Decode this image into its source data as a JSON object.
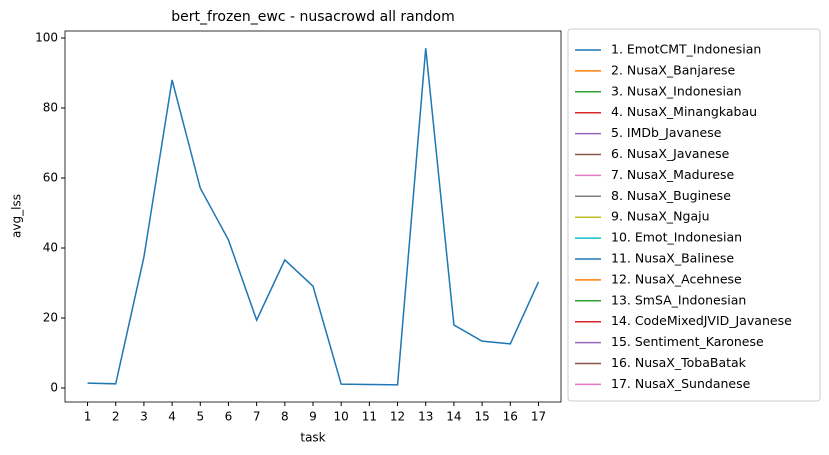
{
  "chart_data": {
    "type": "line",
    "title": "bert_frozen_ewc - nusacrowd all random",
    "xlabel": "task",
    "ylabel": "avg_lss",
    "x": [
      1,
      2,
      3,
      4,
      5,
      6,
      7,
      8,
      9,
      10,
      11,
      12,
      13,
      14,
      15,
      16,
      17
    ],
    "xlim": [
      0.2,
      17.8
    ],
    "xticks": [
      1,
      2,
      3,
      4,
      5,
      6,
      7,
      8,
      9,
      10,
      11,
      12,
      13,
      14,
      15,
      16,
      17
    ],
    "ylim": [
      -4,
      102
    ],
    "yticks": [
      0,
      20,
      40,
      60,
      80,
      100
    ],
    "legend": "outside-right",
    "series": [
      {
        "name": "1. EmotCMT_Indonesian",
        "color": "#1f77b4",
        "values": [
          1.4,
          1.2,
          37.4,
          88,
          57.1,
          42.3,
          19.4,
          36.6,
          29.1,
          1.1,
          1.0,
          0.9,
          97.1,
          18,
          13.4,
          12.6,
          30.3
        ]
      },
      {
        "name": "2. NusaX_Banjarese",
        "color": "#ff7f0e",
        "values": [
          null,
          null,
          null,
          null,
          null,
          null,
          null,
          null,
          null,
          null,
          null,
          null,
          null,
          null,
          null,
          null,
          null
        ]
      },
      {
        "name": "3. NusaX_Indonesian",
        "color": "#2ca02c",
        "values": [
          null,
          null,
          null,
          null,
          null,
          null,
          null,
          null,
          null,
          null,
          null,
          null,
          null,
          null,
          null,
          null,
          null
        ]
      },
      {
        "name": "4. NusaX_Minangkabau",
        "color": "#d62728",
        "values": [
          null,
          null,
          null,
          null,
          null,
          null,
          null,
          null,
          null,
          null,
          null,
          null,
          null,
          null,
          null,
          null,
          null
        ]
      },
      {
        "name": "5. IMDb_Javanese",
        "color": "#9467bd",
        "values": [
          null,
          null,
          null,
          null,
          null,
          null,
          null,
          null,
          null,
          null,
          null,
          null,
          null,
          null,
          null,
          null,
          null
        ]
      },
      {
        "name": "6. NusaX_Javanese",
        "color": "#8c564b",
        "values": [
          null,
          null,
          null,
          null,
          null,
          null,
          null,
          null,
          null,
          null,
          null,
          null,
          null,
          null,
          null,
          null,
          null
        ]
      },
      {
        "name": "7. NusaX_Madurese",
        "color": "#e377c2",
        "values": [
          null,
          null,
          null,
          null,
          null,
          null,
          null,
          null,
          null,
          null,
          null,
          null,
          null,
          null,
          null,
          null,
          null
        ]
      },
      {
        "name": "8. NusaX_Buginese",
        "color": "#7f7f7f",
        "values": [
          null,
          null,
          null,
          null,
          null,
          null,
          null,
          null,
          null,
          null,
          null,
          null,
          null,
          null,
          null,
          null,
          null
        ]
      },
      {
        "name": "9. NusaX_Ngaju",
        "color": "#bcbd22",
        "values": [
          null,
          null,
          null,
          null,
          null,
          null,
          null,
          null,
          null,
          null,
          null,
          null,
          null,
          null,
          null,
          null,
          null
        ]
      },
      {
        "name": "10. Emot_Indonesian",
        "color": "#17becf",
        "values": [
          null,
          null,
          null,
          null,
          null,
          null,
          null,
          null,
          null,
          null,
          null,
          null,
          null,
          null,
          null,
          null,
          null
        ]
      },
      {
        "name": "11. NusaX_Balinese",
        "color": "#1f77b4",
        "values": [
          null,
          null,
          null,
          null,
          null,
          null,
          null,
          null,
          null,
          null,
          null,
          null,
          null,
          null,
          null,
          null,
          null
        ]
      },
      {
        "name": "12. NusaX_Acehnese",
        "color": "#ff7f0e",
        "values": [
          null,
          null,
          null,
          null,
          null,
          null,
          null,
          null,
          null,
          null,
          null,
          null,
          null,
          null,
          null,
          null,
          null
        ]
      },
      {
        "name": "13. SmSA_Indonesian",
        "color": "#2ca02c",
        "values": [
          null,
          null,
          null,
          null,
          null,
          null,
          null,
          null,
          null,
          null,
          null,
          null,
          null,
          null,
          null,
          null,
          null
        ]
      },
      {
        "name": "14. CodeMixedJVID_Javanese",
        "color": "#d62728",
        "values": [
          null,
          null,
          null,
          null,
          null,
          null,
          null,
          null,
          null,
          null,
          null,
          null,
          null,
          null,
          null,
          null,
          null
        ]
      },
      {
        "name": "15. Sentiment_Karonese",
        "color": "#9467bd",
        "values": [
          null,
          null,
          null,
          null,
          null,
          null,
          null,
          null,
          null,
          null,
          null,
          null,
          null,
          null,
          null,
          null,
          null
        ]
      },
      {
        "name": "16. NusaX_TobaBatak",
        "color": "#8c564b",
        "values": [
          null,
          null,
          null,
          null,
          null,
          null,
          null,
          null,
          null,
          null,
          null,
          null,
          null,
          null,
          null,
          null,
          null
        ]
      },
      {
        "name": "17. NusaX_Sundanese",
        "color": "#e377c2",
        "values": [
          null,
          null,
          null,
          null,
          null,
          null,
          null,
          null,
          null,
          null,
          null,
          null,
          null,
          null,
          null,
          null,
          null
        ]
      }
    ]
  }
}
